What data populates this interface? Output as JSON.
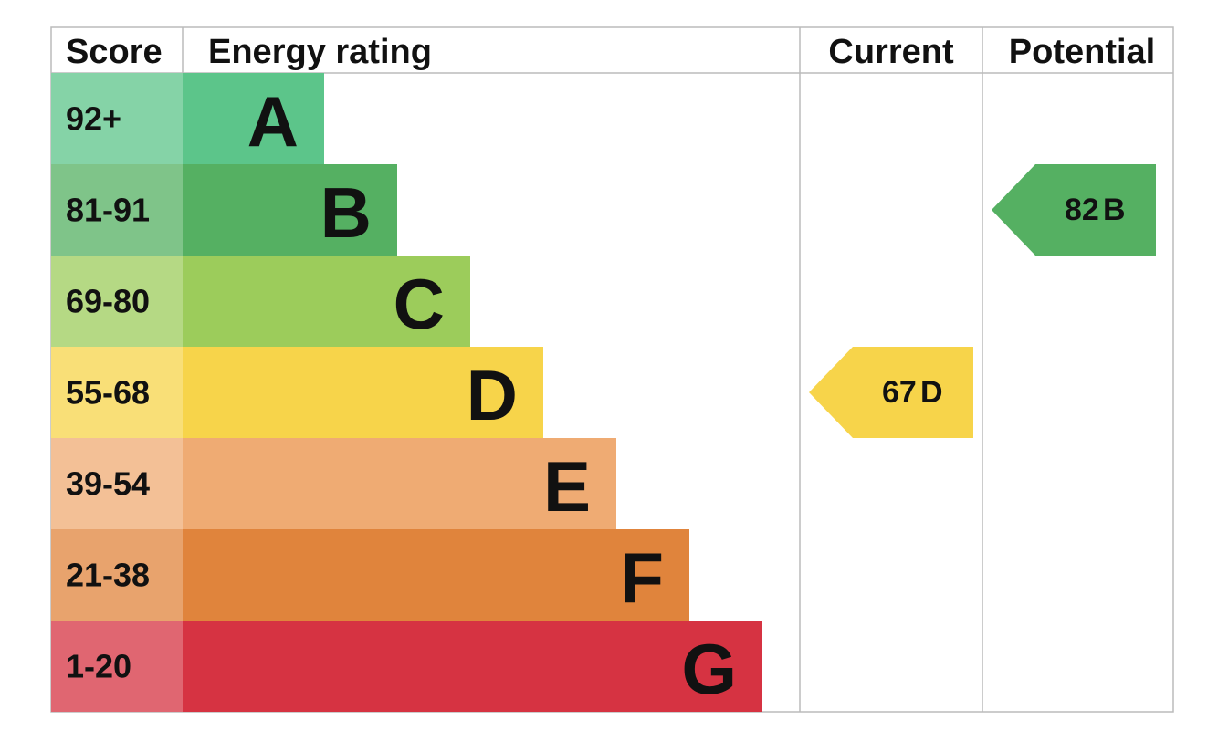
{
  "header": {
    "score": "Score",
    "energy_rating": "Energy rating",
    "current": "Current",
    "potential": "Potential"
  },
  "bands": [
    {
      "score": "92+",
      "letter": "A",
      "color": "#5cc58a"
    },
    {
      "score": "81-91",
      "letter": "B",
      "color": "#55b062"
    },
    {
      "score": "69-80",
      "letter": "C",
      "color": "#9ccc5b"
    },
    {
      "score": "55-68",
      "letter": "D",
      "color": "#f7d44a"
    },
    {
      "score": "39-54",
      "letter": "E",
      "color": "#efab73"
    },
    {
      "score": "21-38",
      "letter": "F",
      "color": "#e0843c"
    },
    {
      "score": "1-20",
      "letter": "G",
      "color": "#d63342"
    }
  ],
  "current": {
    "score": 67,
    "letter": "D"
  },
  "potential": {
    "score": 82,
    "letter": "B"
  }
}
